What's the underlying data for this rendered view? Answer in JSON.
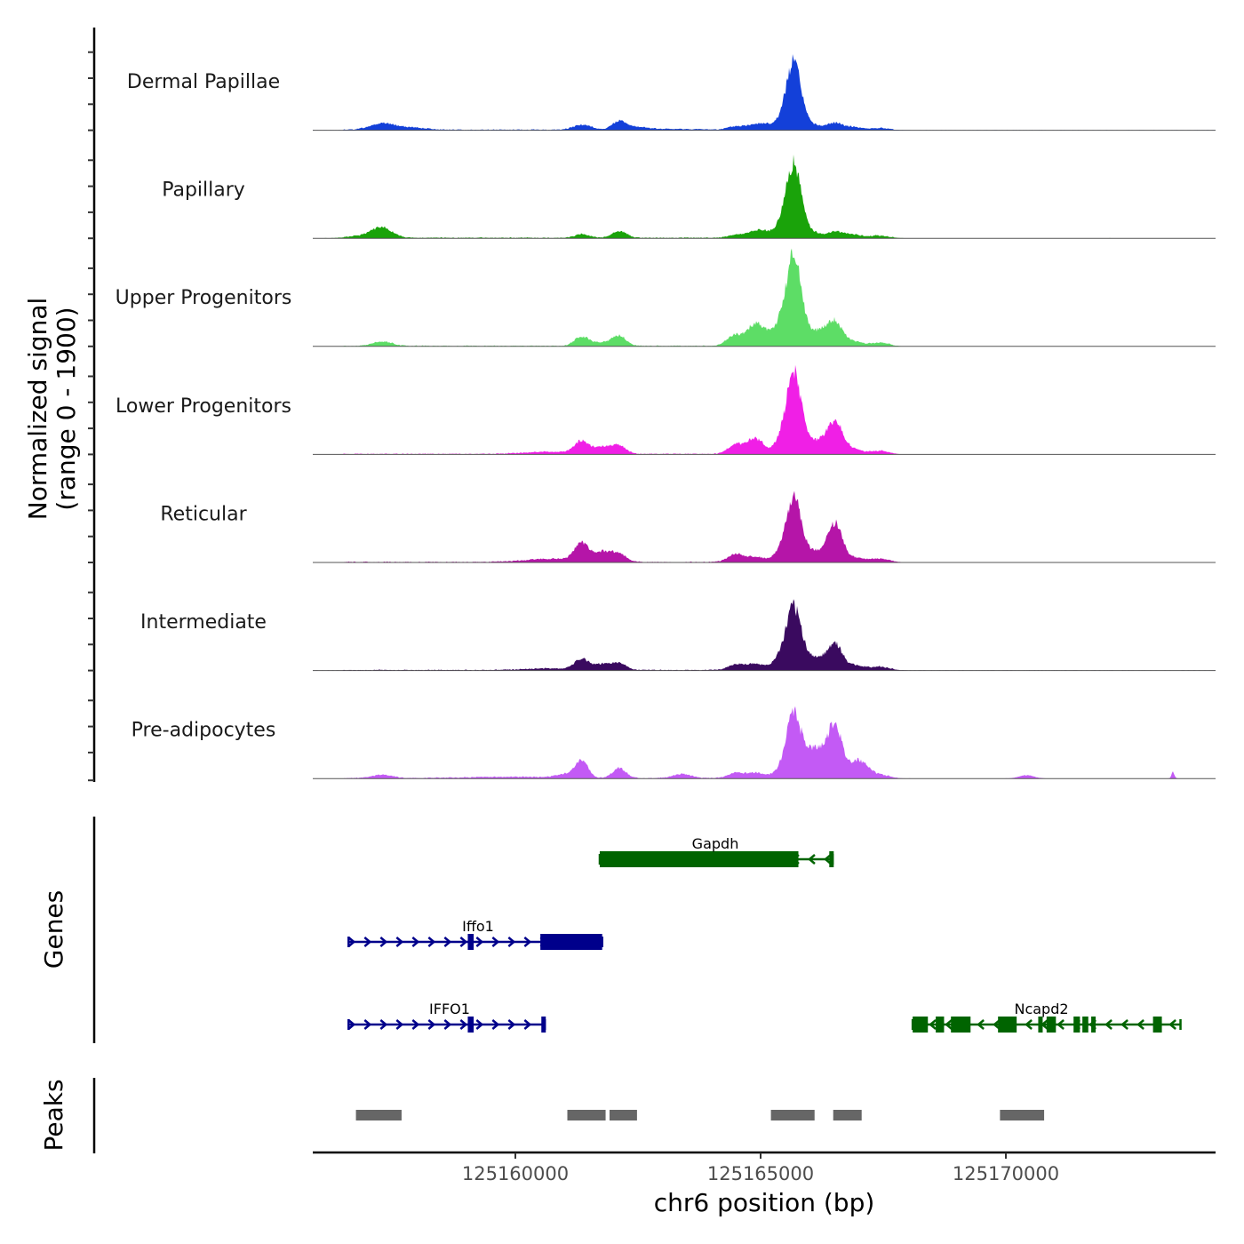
{
  "chart_data": {
    "type": "area",
    "title": "",
    "region": {
      "chrom": "chr6",
      "start": 125155870,
      "end": 125174275
    },
    "xlabel": "chr6 position (bp)",
    "ylabel": "Normalized signal\n(range 0 - 1900)",
    "ylabel_line1": "Normalized signal",
    "ylabel_line2": "(range 0 - 1900)",
    "ylim": [
      0,
      1900
    ],
    "x_ticks": [
      125160000,
      125165000,
      125170000
    ],
    "x_tick_labels": [
      "125160000",
      "125165000",
      "125170000"
    ],
    "panel_labels": {
      "genes": "Genes",
      "peaks": "Peaks"
    },
    "series": [
      {
        "name": "Dermal Papillae",
        "color": "#1340d9",
        "peaks": [
          [
            125157283,
            120,
            250
          ],
          [
            125157900,
            40,
            300
          ],
          [
            125161359,
            90,
            180
          ],
          [
            125162120,
            150,
            140
          ],
          [
            125162500,
            40,
            200
          ],
          [
            125164475,
            50,
            150
          ],
          [
            125164891,
            90,
            200
          ],
          [
            125165200,
            70,
            200
          ],
          [
            125165420,
            60,
            120
          ],
          [
            125165670,
            1190,
            150
          ],
          [
            125166000,
            90,
            250
          ],
          [
            125166522,
            110,
            160
          ],
          [
            125166884,
            50,
            180
          ],
          [
            125167428,
            30,
            200
          ],
          [
            125163000,
            15,
            800
          ]
        ]
      },
      {
        "name": "Papillary",
        "color": "#1aa30a",
        "peaks": [
          [
            125157283,
            180,
            200
          ],
          [
            125156900,
            40,
            300
          ],
          [
            125161359,
            70,
            150
          ],
          [
            125162120,
            120,
            150
          ],
          [
            125164475,
            50,
            150
          ],
          [
            125164891,
            110,
            200
          ],
          [
            125165200,
            80,
            200
          ],
          [
            125165420,
            140,
            100
          ],
          [
            125165670,
            1330,
            150
          ],
          [
            125166000,
            110,
            200
          ],
          [
            125166522,
            110,
            160
          ],
          [
            125166884,
            60,
            180
          ],
          [
            125167428,
            40,
            200
          ]
        ]
      },
      {
        "name": "Upper Progenitors",
        "color": "#5ddd66",
        "peaks": [
          [
            125157283,
            80,
            200
          ],
          [
            125161359,
            170,
            150
          ],
          [
            125161800,
            60,
            200
          ],
          [
            125162120,
            180,
            140
          ],
          [
            125164475,
            200,
            160
          ],
          [
            125164891,
            380,
            160
          ],
          [
            125165380,
            260,
            120
          ],
          [
            125165670,
            1660,
            150
          ],
          [
            125166000,
            220,
            200
          ],
          [
            125166300,
            160,
            150
          ],
          [
            125166522,
            400,
            150
          ],
          [
            125166884,
            80,
            180
          ],
          [
            125167428,
            60,
            180
          ],
          [
            125165150,
            150,
            150
          ]
        ]
      },
      {
        "name": "Lower Progenitors",
        "color": "#f01fe6",
        "peaks": [
          [
            125161359,
            230,
            150
          ],
          [
            125161800,
            130,
            160
          ],
          [
            125162120,
            150,
            140
          ],
          [
            125160700,
            40,
            500
          ],
          [
            125164475,
            160,
            150
          ],
          [
            125164891,
            280,
            180
          ],
          [
            125165380,
            160,
            120
          ],
          [
            125165670,
            1480,
            150
          ],
          [
            125166000,
            160,
            200
          ],
          [
            125166250,
            140,
            150
          ],
          [
            125166522,
            560,
            150
          ],
          [
            125166884,
            90,
            180
          ],
          [
            125167428,
            60,
            180
          ]
        ]
      },
      {
        "name": "Reticular",
        "color": "#b515a8",
        "peaks": [
          [
            125161359,
            340,
            150
          ],
          [
            125161800,
            180,
            160
          ],
          [
            125162120,
            150,
            140
          ],
          [
            125160700,
            60,
            500
          ],
          [
            125164475,
            130,
            150
          ],
          [
            125164891,
            90,
            250
          ],
          [
            125165380,
            120,
            120
          ],
          [
            125165670,
            1130,
            150
          ],
          [
            125166000,
            170,
            200
          ],
          [
            125166300,
            120,
            150
          ],
          [
            125166522,
            660,
            140
          ],
          [
            125166884,
            80,
            200
          ],
          [
            125167428,
            60,
            200
          ]
        ]
      },
      {
        "name": "Intermediate",
        "color": "#3a0a5f",
        "peaks": [
          [
            125161359,
            200,
            150
          ],
          [
            125161800,
            110,
            160
          ],
          [
            125162120,
            120,
            140
          ],
          [
            125160700,
            30,
            500
          ],
          [
            125164475,
            80,
            150
          ],
          [
            125164891,
            110,
            250
          ],
          [
            125165380,
            170,
            120
          ],
          [
            125165670,
            1100,
            150
          ],
          [
            125166000,
            200,
            200
          ],
          [
            125166300,
            120,
            150
          ],
          [
            125166522,
            430,
            140
          ],
          [
            125166884,
            90,
            200
          ],
          [
            125167428,
            60,
            200
          ]
        ]
      },
      {
        "name": "Pre-adipocytes",
        "color": "#c35af5",
        "peaks": [
          [
            125157283,
            60,
            200
          ],
          [
            125161100,
            80,
            200
          ],
          [
            125161359,
            300,
            120
          ],
          [
            125162120,
            180,
            130
          ],
          [
            125163400,
            80,
            180
          ],
          [
            125164475,
            90,
            150
          ],
          [
            125164891,
            100,
            200
          ],
          [
            125165380,
            120,
            120
          ],
          [
            125165670,
            1180,
            140
          ],
          [
            125165950,
            380,
            120
          ],
          [
            125166150,
            330,
            120
          ],
          [
            125166300,
            280,
            120
          ],
          [
            125166522,
            990,
            130
          ],
          [
            125166884,
            240,
            150
          ],
          [
            125167100,
            180,
            150
          ],
          [
            125167428,
            60,
            200
          ],
          [
            125170417,
            60,
            150
          ],
          [
            125173406,
            120,
            30
          ],
          [
            125160000,
            25,
            1000
          ]
        ]
      }
    ],
    "genes": [
      {
        "name": "Gapdh",
        "strand": "-",
        "color": "#006400",
        "row": 0,
        "start": 125161721,
        "end": 125166468,
        "exons": [
          [
            125161721,
            125165770,
            "thick"
          ],
          [
            125166400,
            125166468,
            "thick"
          ]
        ]
      },
      {
        "name": "Iffo1",
        "strand": "+",
        "color": "#00008b",
        "row": 1,
        "start": 125156600,
        "end": 125161770,
        "exons": [
          [
            125159030,
            125159150,
            "thick"
          ],
          [
            125160510,
            125161770,
            "thick"
          ]
        ]
      },
      {
        "name": "IFFO1",
        "strand": "+",
        "color": "#00008b",
        "row": 2,
        "start": 125156600,
        "end": 125160600,
        "exons": [
          [
            125159030,
            125159150,
            "thick"
          ],
          [
            125160530,
            125160600,
            "thick"
          ]
        ]
      },
      {
        "name": "Ncapd2",
        "strand": "-",
        "color": "#006400",
        "row": 2,
        "start": 125168100,
        "end": 125173560,
        "exons": [
          [
            125168100,
            125168410,
            "thick"
          ],
          [
            125168570,
            125168740,
            "thick"
          ],
          [
            125168880,
            125169280,
            "thick"
          ],
          [
            125169840,
            125170220,
            "thick"
          ],
          [
            125170660,
            125170750,
            "thick"
          ],
          [
            125170830,
            125171020,
            "thick"
          ],
          [
            125171380,
            125171510,
            "thick"
          ],
          [
            125171560,
            125171680,
            "thick"
          ],
          [
            125171740,
            125171830,
            "thick"
          ],
          [
            125173000,
            125173180,
            "thick"
          ]
        ]
      }
    ],
    "peaks_track": {
      "color": "#666666",
      "intervals": [
        [
          125156750,
          125157680
        ],
        [
          125161060,
          125161840
        ],
        [
          125161920,
          125162480
        ],
        [
          125165210,
          125166100
        ],
        [
          125166480,
          125167060
        ],
        [
          125169880,
          125170780
        ]
      ]
    }
  }
}
